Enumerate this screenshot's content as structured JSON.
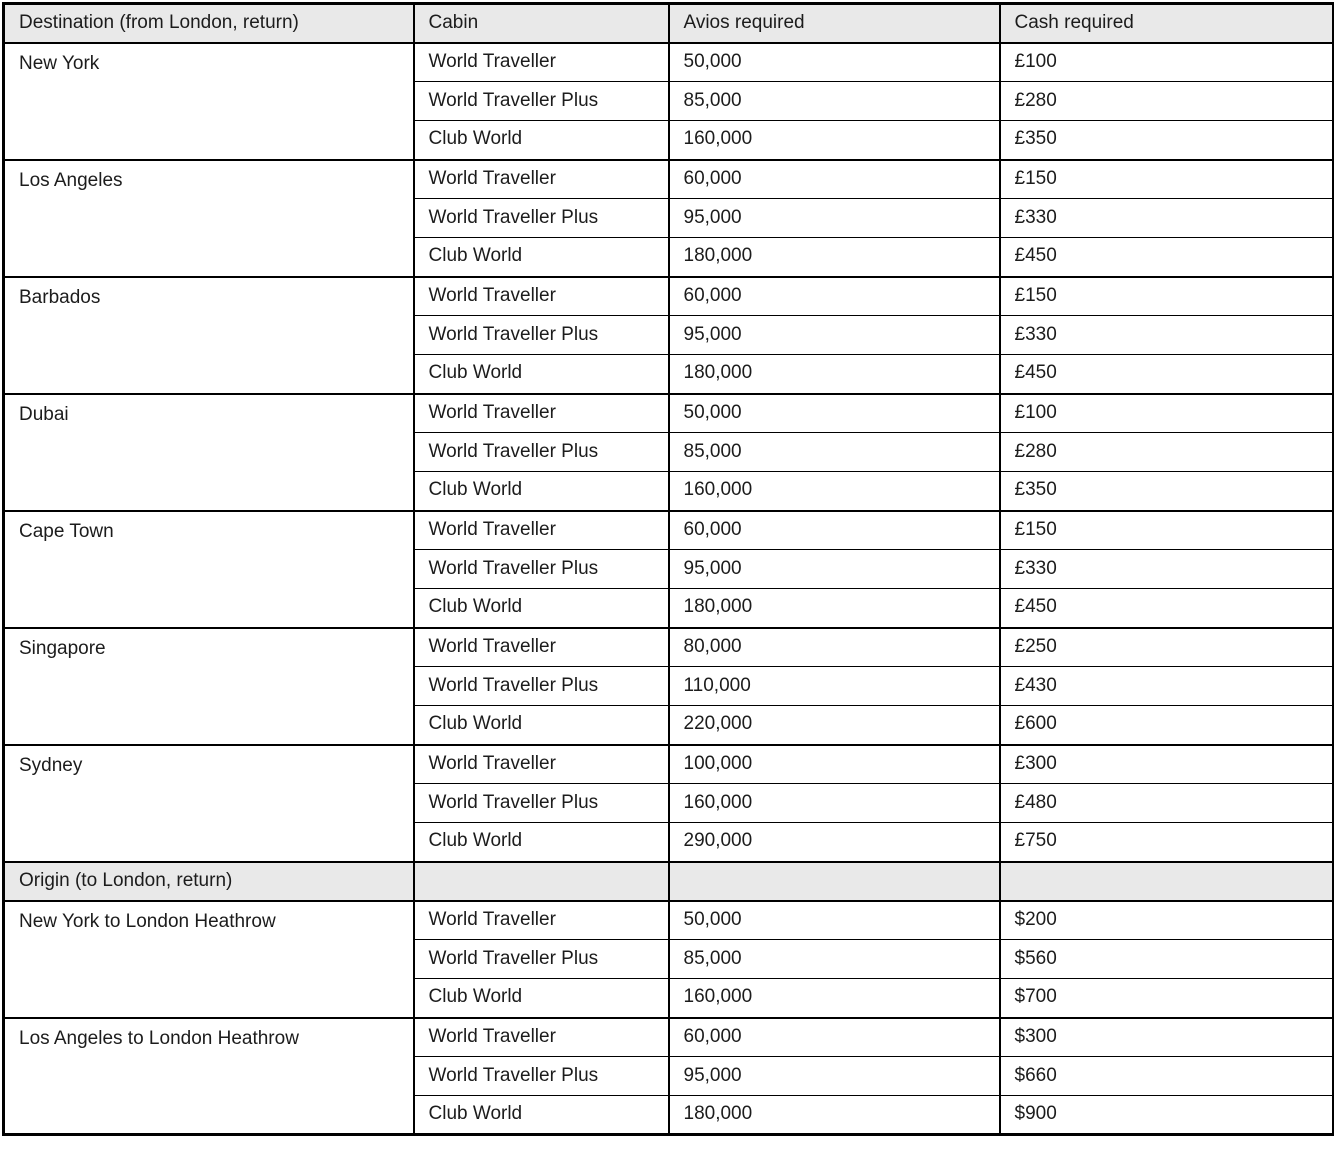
{
  "colors": {
    "header_bg": "#e9e9e9",
    "section_row_bg": "#e9e9e9",
    "border": "#000000",
    "text": "#1c1c1c",
    "row_bg": "#ffffff"
  },
  "chart_data": {
    "type": "table",
    "columns": [
      "Destination (from London, return)",
      "Cabin",
      "Avios required",
      "Cash required"
    ],
    "sections": [
      {
        "title": null,
        "groups": [
          {
            "name": "New York",
            "rows": [
              {
                "cabin": "World Traveller",
                "avios": "50,000",
                "cash": "£100"
              },
              {
                "cabin": "World Traveller Plus",
                "avios": "85,000",
                "cash": "£280"
              },
              {
                "cabin": "Club World",
                "avios": "160,000",
                "cash": "£350"
              }
            ]
          },
          {
            "name": "Los Angeles",
            "rows": [
              {
                "cabin": "World Traveller",
                "avios": "60,000",
                "cash": "£150"
              },
              {
                "cabin": "World Traveller Plus",
                "avios": "95,000",
                "cash": "£330"
              },
              {
                "cabin": "Club World",
                "avios": "180,000",
                "cash": "£450"
              }
            ]
          },
          {
            "name": "Barbados",
            "rows": [
              {
                "cabin": "World Traveller",
                "avios": "60,000",
                "cash": "£150"
              },
              {
                "cabin": "World Traveller Plus",
                "avios": "95,000",
                "cash": "£330"
              },
              {
                "cabin": "Club World",
                "avios": "180,000",
                "cash": "£450"
              }
            ]
          },
          {
            "name": "Dubai",
            "rows": [
              {
                "cabin": "World Traveller",
                "avios": "50,000",
                "cash": "£100"
              },
              {
                "cabin": "World Traveller Plus",
                "avios": "85,000",
                "cash": "£280"
              },
              {
                "cabin": "Club World",
                "avios": "160,000",
                "cash": "£350"
              }
            ]
          },
          {
            "name": "Cape Town",
            "rows": [
              {
                "cabin": "World Traveller",
                "avios": "60,000",
                "cash": "£150"
              },
              {
                "cabin": "World Traveller Plus",
                "avios": "95,000",
                "cash": "£330"
              },
              {
                "cabin": "Club World",
                "avios": "180,000",
                "cash": "£450"
              }
            ]
          },
          {
            "name": "Singapore",
            "rows": [
              {
                "cabin": "World Traveller",
                "avios": "80,000",
                "cash": "£250"
              },
              {
                "cabin": "World Traveller Plus",
                "avios": "110,000",
                "cash": "£430"
              },
              {
                "cabin": "Club World",
                "avios": "220,000",
                "cash": "£600"
              }
            ]
          },
          {
            "name": "Sydney",
            "rows": [
              {
                "cabin": "World Traveller",
                "avios": "100,000",
                "cash": "£300"
              },
              {
                "cabin": "World Traveller Plus",
                "avios": "160,000",
                "cash": "£480"
              },
              {
                "cabin": "Club World",
                "avios": "290,000",
                "cash": "£750"
              }
            ]
          }
        ]
      },
      {
        "title": "Origin (to London, return)",
        "groups": [
          {
            "name": "New York to London Heathrow",
            "rows": [
              {
                "cabin": "World Traveller",
                "avios": "50,000",
                "cash": "$200"
              },
              {
                "cabin": "World Traveller Plus",
                "avios": "85,000",
                "cash": "$560"
              },
              {
                "cabin": "Club World",
                "avios": "160,000",
                "cash": "$700"
              }
            ]
          },
          {
            "name": "Los Angeles to London Heathrow",
            "rows": [
              {
                "cabin": "World Traveller",
                "avios": "60,000",
                "cash": "$300"
              },
              {
                "cabin": "World Traveller Plus",
                "avios": "95,000",
                "cash": "$660"
              },
              {
                "cabin": "Club World",
                "avios": "180,000",
                "cash": "$900"
              }
            ]
          }
        ]
      }
    ]
  }
}
